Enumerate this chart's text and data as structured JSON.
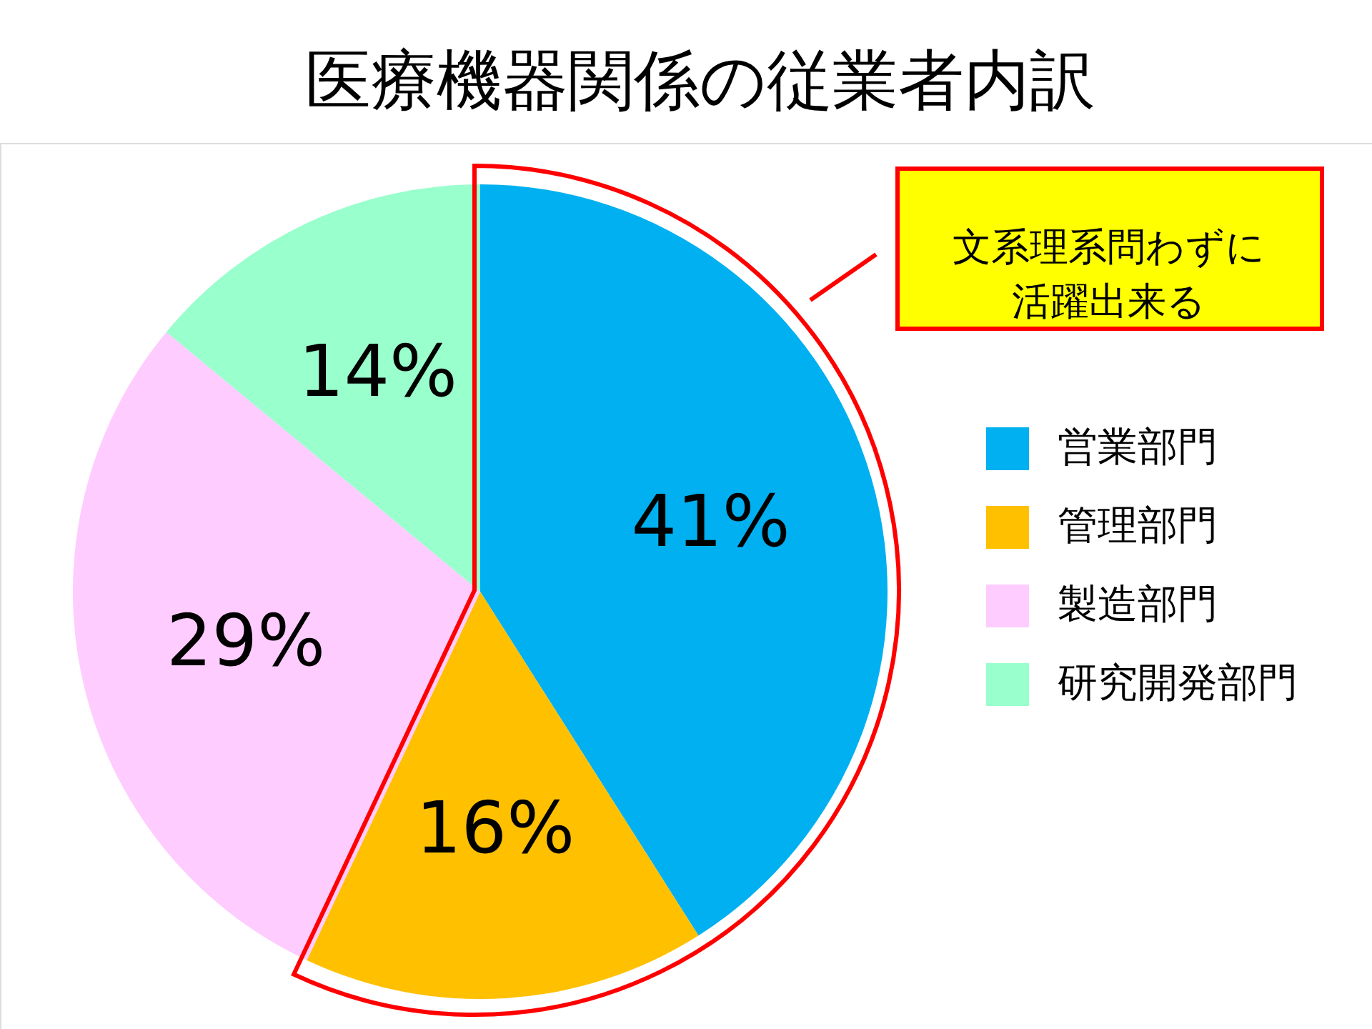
{
  "chart_data": {
    "type": "pie",
    "title": "医療機器関係の従業者内訳",
    "categories": [
      "営業部門",
      "管理部門",
      "製造部門",
      "研究開発部門"
    ],
    "values": [
      41,
      16,
      29,
      14
    ],
    "colors": [
      "#00b0f0",
      "#ffc000",
      "#ffccff",
      "#99ffcc"
    ],
    "value_labels": [
      "41%",
      "16%",
      "29%",
      "14%"
    ],
    "annotations": [
      "文系理系問わずに活躍出来る"
    ],
    "legend": "right"
  }
}
